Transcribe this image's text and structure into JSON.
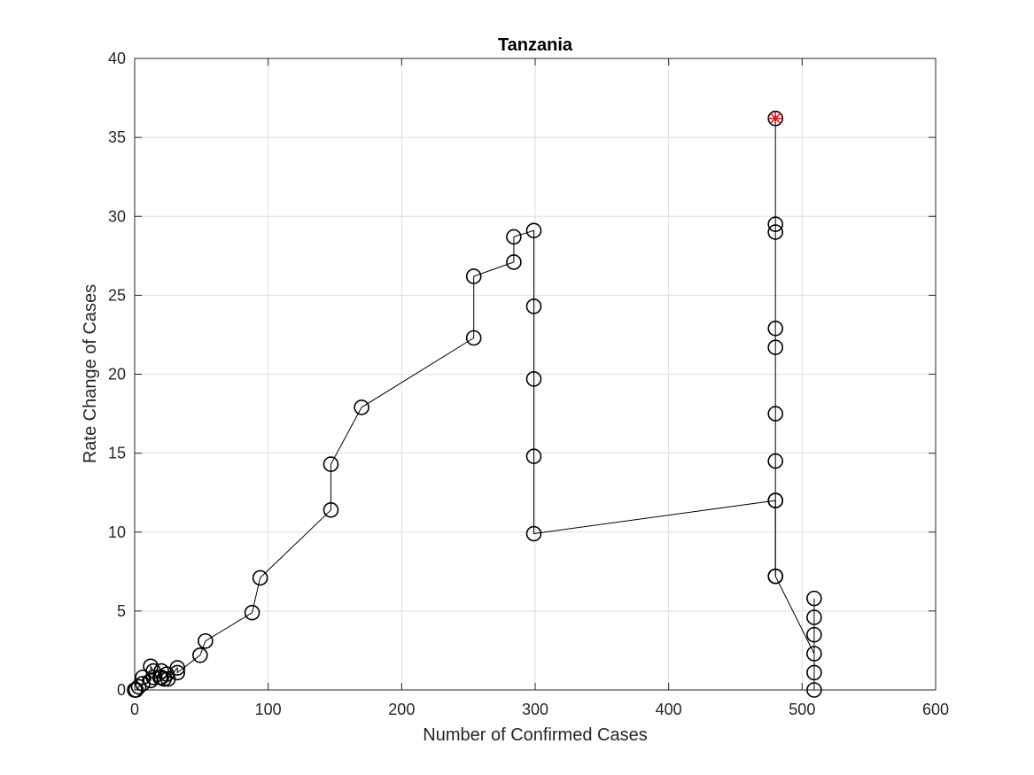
{
  "chart_data": {
    "type": "line",
    "title": "Tanzania",
    "xlabel": "Number of Confirmed Cases",
    "ylabel": "Rate Change of Cases",
    "xlim": [
      0,
      600
    ],
    "ylim": [
      0,
      40
    ],
    "xticks": [
      0,
      100,
      200,
      300,
      400,
      500,
      600
    ],
    "yticks": [
      0,
      5,
      10,
      15,
      20,
      25,
      30,
      35,
      40
    ],
    "grid": true,
    "series": [
      {
        "marker": "circle",
        "color": "#000000",
        "points": [
          [
            0,
            0
          ],
          [
            1,
            0
          ],
          [
            3,
            0.2
          ],
          [
            6,
            0.4
          ],
          [
            6,
            0.8
          ],
          [
            12,
            0.6
          ],
          [
            12,
            1.5
          ],
          [
            14,
            1.2
          ],
          [
            14,
            0.8
          ],
          [
            19,
            0.8
          ],
          [
            20,
            1.2
          ],
          [
            20,
            0.8
          ],
          [
            22,
            0.7
          ],
          [
            24,
            1.0
          ],
          [
            25,
            0.7
          ],
          [
            32,
            1.4
          ],
          [
            32,
            1.1
          ],
          [
            49,
            2.2
          ],
          [
            53,
            3.1
          ],
          [
            88,
            4.9
          ],
          [
            94,
            7.1
          ],
          [
            147,
            11.4
          ],
          [
            147,
            14.3
          ],
          [
            170,
            17.9
          ],
          [
            254,
            22.3
          ],
          [
            254,
            26.2
          ],
          [
            284,
            27.1
          ],
          [
            284,
            28.7
          ],
          [
            299,
            29.1
          ],
          [
            299,
            24.3
          ],
          [
            299,
            19.7
          ],
          [
            299,
            14.8
          ],
          [
            299,
            9.9
          ],
          [
            480,
            12.0
          ],
          [
            480,
            7.2
          ],
          [
            509,
            2.3
          ],
          [
            509,
            0
          ],
          [
            509,
            1.1
          ],
          [
            509,
            3.5
          ],
          [
            509,
            4.6
          ],
          [
            509,
            5.8
          ]
        ]
      },
      {
        "marker": "circle",
        "color": "#000000",
        "points": [
          [
            480,
            7.2
          ],
          [
            480,
            12.0
          ],
          [
            480,
            14.5
          ],
          [
            480,
            17.5
          ],
          [
            480,
            21.7
          ],
          [
            480,
            22.9
          ],
          [
            480,
            29.0
          ],
          [
            480,
            29.5
          ],
          [
            480,
            36.2
          ]
        ]
      }
    ],
    "highlight": {
      "point": [
        480,
        36.2
      ],
      "marker": "star",
      "color": "#e8101a"
    }
  }
}
